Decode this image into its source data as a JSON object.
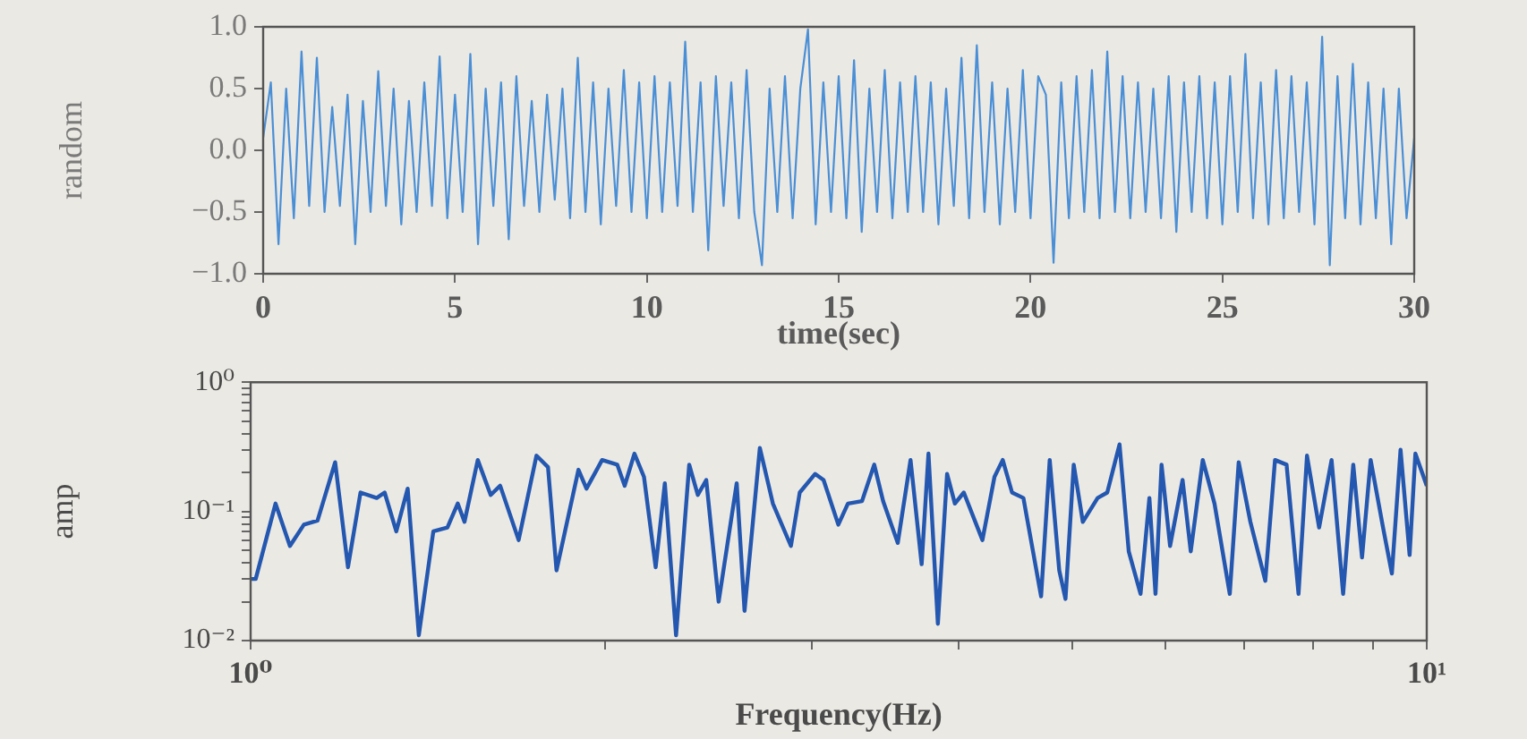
{
  "chart_data": [
    {
      "type": "line",
      "xlabel": "time(sec)",
      "ylabel": "random",
      "marker": "none",
      "line_style": "solid",
      "x": [
        0,
        0.2,
        0.4,
        0.6,
        0.8,
        1,
        1.2,
        1.4,
        1.6,
        1.8,
        2,
        2.2,
        2.4,
        2.6,
        2.8,
        3,
        3.2,
        3.4,
        3.6,
        3.8,
        4,
        4.2,
        4.4,
        4.6,
        4.8,
        5,
        5.2,
        5.4,
        5.6,
        5.8,
        6,
        6.2,
        6.4,
        6.6,
        6.8,
        7,
        7.2,
        7.4,
        7.6,
        7.8,
        8,
        8.2,
        8.4,
        8.6,
        8.8,
        9,
        9.2,
        9.4,
        9.6,
        9.8,
        10,
        10.2,
        10.4,
        10.6,
        10.8,
        11,
        11.2,
        11.4,
        11.6,
        11.8,
        12,
        12.2,
        12.4,
        12.6,
        12.8,
        13,
        13.2,
        13.4,
        13.6,
        13.8,
        14,
        14.2,
        14.4,
        14.6,
        14.8,
        15,
        15.2,
        15.4,
        15.6,
        15.8,
        16,
        16.2,
        16.4,
        16.6,
        16.8,
        17,
        17.2,
        17.4,
        17.6,
        17.8,
        18,
        18.2,
        18.4,
        18.6,
        18.8,
        19,
        19.2,
        19.4,
        19.6,
        19.8,
        20,
        20.2,
        20.4,
        20.6,
        20.8,
        21,
        21.2,
        21.4,
        21.6,
        21.8,
        22,
        22.2,
        22.4,
        22.6,
        22.8,
        23,
        23.2,
        23.4,
        23.6,
        23.8,
        24,
        24.2,
        24.4,
        24.6,
        24.8,
        25,
        25.2,
        25.4,
        25.6,
        25.8,
        26,
        26.2,
        26.4,
        26.6,
        26.8,
        27,
        27.2,
        27.4,
        27.6,
        27.8,
        28,
        28.2,
        28.4,
        28.6,
        28.8,
        29,
        29.2,
        29.4,
        29.6,
        29.8,
        30
      ],
      "series": [
        {
          "color": "#4a8fd6",
          "values": [
            0.1,
            0.55,
            -0.76,
            0.5,
            -0.55,
            0.8,
            -0.45,
            0.75,
            -0.5,
            0.35,
            -0.45,
            0.45,
            -0.76,
            0.4,
            -0.5,
            0.64,
            -0.45,
            0.5,
            -0.6,
            0.4,
            -0.5,
            0.55,
            -0.45,
            0.76,
            -0.55,
            0.45,
            -0.5,
            0.78,
            -0.76,
            0.5,
            -0.45,
            0.55,
            -0.72,
            0.6,
            -0.45,
            0.4,
            -0.5,
            0.45,
            -0.4,
            0.5,
            -0.55,
            0.75,
            -0.5,
            0.55,
            -0.6,
            0.5,
            -0.45,
            0.65,
            -0.5,
            0.55,
            -0.55,
            0.6,
            -0.5,
            0.55,
            -0.45,
            0.88,
            -0.5,
            0.55,
            -0.81,
            0.6,
            -0.45,
            0.55,
            -0.55,
            0.65,
            -0.5,
            -0.93,
            0.5,
            -0.5,
            0.6,
            -0.55,
            0.5,
            0.98,
            -0.6,
            0.55,
            -0.5,
            0.6,
            -0.55,
            0.73,
            -0.66,
            0.5,
            -0.5,
            0.65,
            -0.55,
            0.55,
            -0.5,
            0.6,
            -0.5,
            0.55,
            -0.6,
            0.5,
            -0.45,
            0.75,
            -0.55,
            0.85,
            -0.5,
            0.55,
            -0.6,
            0.5,
            -0.5,
            0.65,
            -0.55,
            0.6,
            0.45,
            -0.91,
            0.55,
            -0.55,
            0.6,
            -0.5,
            0.65,
            -0.55,
            0.8,
            -0.5,
            0.6,
            -0.55,
            0.55,
            -0.5,
            0.5,
            -0.55,
            0.6,
            -0.66,
            0.55,
            -0.5,
            0.6,
            -0.55,
            0.55,
            -0.6,
            0.6,
            -0.5,
            0.78,
            -0.55,
            0.55,
            -0.6,
            0.65,
            -0.55,
            0.6,
            -0.5,
            0.55,
            -0.6,
            0.92,
            -0.93,
            0.6,
            -0.55,
            0.7,
            -0.6,
            0.55,
            -0.55,
            0.5,
            -0.76,
            0.5,
            -0.55,
            0.1
          ]
        }
      ],
      "xlim": [
        0,
        30
      ],
      "xticks": [
        0,
        5,
        10,
        15,
        20,
        25,
        30
      ],
      "ylim": [
        -1,
        1
      ],
      "yticks": [
        {
          "value": -1,
          "label": "−1.0"
        },
        {
          "value": -0.5,
          "label": "−0.5"
        },
        {
          "value": 0,
          "label": "0.0"
        },
        {
          "value": 0.5,
          "label": "0.5"
        },
        {
          "value": 1,
          "label": "1.0"
        }
      ]
    },
    {
      "type": "line",
      "xlabel": "Frequency(Hz)",
      "ylabel": "amp",
      "log": "xy",
      "marker": "none",
      "line_style": "solid",
      "x": [
        1,
        1.01,
        1.05,
        1.08,
        1.11,
        1.14,
        1.18,
        1.21,
        1.24,
        1.28,
        1.3,
        1.33,
        1.36,
        1.39,
        1.43,
        1.47,
        1.5,
        1.52,
        1.56,
        1.6,
        1.63,
        1.69,
        1.75,
        1.79,
        1.82,
        1.9,
        1.93,
        1.99,
        2.05,
        2.08,
        2.12,
        2.16,
        2.21,
        2.25,
        2.3,
        2.36,
        2.4,
        2.44,
        2.5,
        2.59,
        2.63,
        2.71,
        2.78,
        2.88,
        2.93,
        3.02,
        3.07,
        3.16,
        3.22,
        3.31,
        3.39,
        3.45,
        3.55,
        3.64,
        3.72,
        3.77,
        3.84,
        3.91,
        3.97,
        4.04,
        4.19,
        4.29,
        4.36,
        4.44,
        4.54,
        4.7,
        4.78,
        4.87,
        4.93,
        5.01,
        5.1,
        5.25,
        5.35,
        5.48,
        5.58,
        5.71,
        5.81,
        5.88,
        5.95,
        6.05,
        6.2,
        6.3,
        6.45,
        6.6,
        6.8,
        6.92,
        7.08,
        7.29,
        7.43,
        7.6,
        7.78,
        7.91,
        8.1,
        8.3,
        8.49,
        8.66,
        8.81,
        8.96,
        9.18,
        9.34,
        9.5,
        9.67,
        9.78,
        10
      ],
      "series": [
        {
          "color": "#2457b0",
          "values": [
            0.03,
            0.03,
            0.115,
            0.054,
            0.079,
            0.085,
            0.24,
            0.037,
            0.14,
            0.127,
            0.14,
            0.07,
            0.15,
            0.011,
            0.07,
            0.075,
            0.115,
            0.083,
            0.25,
            0.134,
            0.158,
            0.06,
            0.27,
            0.22,
            0.035,
            0.21,
            0.15,
            0.25,
            0.23,
            0.158,
            0.28,
            0.185,
            0.037,
            0.165,
            0.011,
            0.23,
            0.134,
            0.175,
            0.02,
            0.165,
            0.017,
            0.31,
            0.115,
            0.054,
            0.14,
            0.195,
            0.175,
            0.079,
            0.115,
            0.12,
            0.23,
            0.12,
            0.057,
            0.25,
            0.039,
            0.28,
            0.0135,
            0.195,
            0.115,
            0.14,
            0.06,
            0.185,
            0.25,
            0.14,
            0.127,
            0.022,
            0.25,
            0.035,
            0.021,
            0.23,
            0.083,
            0.127,
            0.14,
            0.33,
            0.049,
            0.023,
            0.127,
            0.023,
            0.23,
            0.054,
            0.175,
            0.049,
            0.25,
            0.115,
            0.023,
            0.24,
            0.083,
            0.029,
            0.25,
            0.23,
            0.023,
            0.27,
            0.075,
            0.25,
            0.023,
            0.23,
            0.044,
            0.25,
            0.075,
            0.033,
            0.3,
            0.046,
            0.28,
            0.158
          ]
        }
      ],
      "xlim": [
        1,
        10
      ],
      "xticks": [
        {
          "value": 1,
          "label": "10⁰"
        },
        {
          "value": 2,
          "label": null
        },
        {
          "value": 3,
          "label": null
        },
        {
          "value": 4,
          "label": null
        },
        {
          "value": 5,
          "label": null
        },
        {
          "value": 6,
          "label": null
        },
        {
          "value": 7,
          "label": null
        },
        {
          "value": 8,
          "label": null
        },
        {
          "value": 9,
          "label": null
        },
        {
          "value": 10,
          "label": "10¹"
        }
      ],
      "ylim": [
        0.01,
        1
      ],
      "yticks": [
        {
          "value": 0.01,
          "label": "10⁻²"
        },
        {
          "value": 0.02,
          "label": null
        },
        {
          "value": 0.03,
          "label": null
        },
        {
          "value": 0.04,
          "label": null
        },
        {
          "value": 0.05,
          "label": null
        },
        {
          "value": 0.06,
          "label": null
        },
        {
          "value": 0.07,
          "label": null
        },
        {
          "value": 0.08,
          "label": null
        },
        {
          "value": 0.09,
          "label": null
        },
        {
          "value": 0.1,
          "label": "10⁻¹"
        },
        {
          "value": 0.2,
          "label": null
        },
        {
          "value": 0.3,
          "label": null
        },
        {
          "value": 0.4,
          "label": null
        },
        {
          "value": 0.5,
          "label": null
        },
        {
          "value": 0.6,
          "label": null
        },
        {
          "value": 0.7,
          "label": null
        },
        {
          "value": 0.8,
          "label": null
        },
        {
          "value": 0.9,
          "label": null
        },
        {
          "value": 1,
          "label": "10⁰"
        }
      ]
    }
  ]
}
